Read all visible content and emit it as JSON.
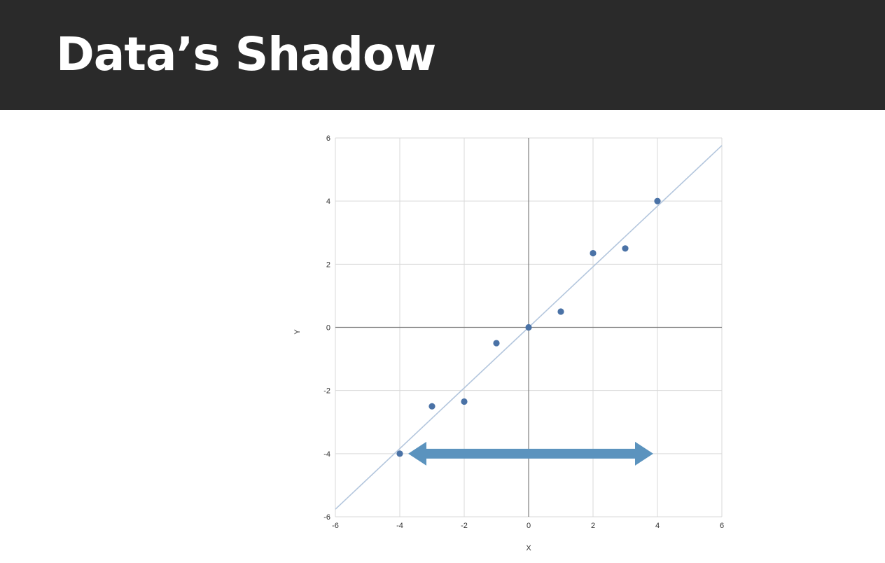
{
  "slide": {
    "title": "Data’s Shadow"
  },
  "chart_data": {
    "type": "scatter",
    "title": "",
    "xlabel": "X",
    "ylabel": "Y",
    "xlim": [
      -6,
      6
    ],
    "ylim": [
      -6,
      6
    ],
    "xticks": [
      -6,
      -4,
      -2,
      0,
      2,
      4,
      6
    ],
    "yticks": [
      -6,
      -4,
      -2,
      0,
      2,
      4,
      6
    ],
    "grid": true,
    "points": [
      {
        "x": -4,
        "y": -4
      },
      {
        "x": -3,
        "y": -2.5
      },
      {
        "x": -2,
        "y": -2.35
      },
      {
        "x": -1,
        "y": -0.5
      },
      {
        "x": 0,
        "y": 0
      },
      {
        "x": 1,
        "y": 0.5
      },
      {
        "x": 2,
        "y": 2.35
      },
      {
        "x": 3,
        "y": 2.5
      },
      {
        "x": 4,
        "y": 4
      }
    ],
    "trend_line": {
      "slope": 0.96,
      "intercept": 0
    },
    "annotation_arrow": {
      "type": "double-headed",
      "from_x": -4,
      "to_x": 4,
      "y": -4
    },
    "colors": {
      "points": "#4a72a6",
      "trend_line": "#b3c6dd",
      "arrow": "#5b93be",
      "grid": "#d9d9d9",
      "axis_zero": "#7f7f7f"
    }
  }
}
